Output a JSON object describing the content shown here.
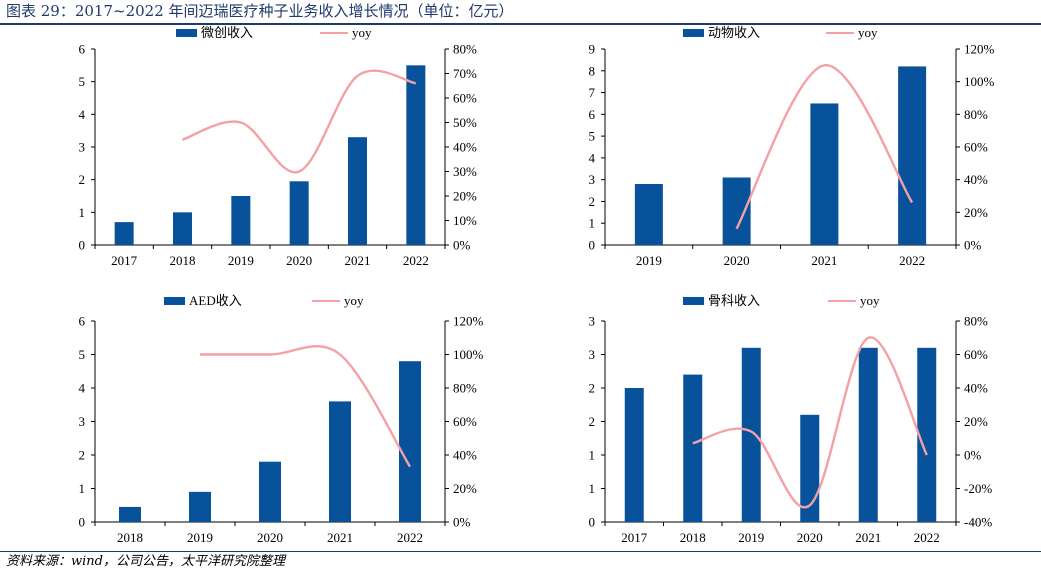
{
  "title": "图表 29：2017~2022 年间迈瑞医疗种子业务收入增长情况（单位：亿元）",
  "source": "资料来源：wind，公司公告，太平洋研究院整理",
  "colors": {
    "bar": "#08529c",
    "line": "#f4a0a4",
    "title": "#1f3a6b"
  },
  "chart_data": [
    {
      "type": "bar",
      "categories": [
        "2017",
        "2018",
        "2019",
        "2020",
        "2021",
        "2022"
      ],
      "series": [
        {
          "name": "微创收入",
          "type": "bar",
          "axis": "left",
          "values": [
            0.7,
            1.0,
            1.5,
            1.95,
            3.3,
            5.5
          ]
        },
        {
          "name": "yoy",
          "type": "line",
          "axis": "right",
          "values": [
            null,
            43,
            50,
            30,
            69,
            66
          ]
        }
      ],
      "ylim": [
        0,
        6
      ],
      "yticks": [
        "0",
        "1",
        "2",
        "3",
        "4",
        "5",
        "6"
      ],
      "y2lim": [
        0,
        80
      ],
      "y2ticks": [
        "0%",
        "10%",
        "20%",
        "30%",
        "40%",
        "50%",
        "60%",
        "70%",
        "80%"
      ],
      "legend": "top"
    },
    {
      "type": "bar",
      "categories": [
        "2019",
        "2020",
        "2021",
        "2022"
      ],
      "series": [
        {
          "name": "动物收入",
          "type": "bar",
          "axis": "left",
          "values": [
            2.8,
            3.1,
            6.5,
            8.2
          ]
        },
        {
          "name": "yoy",
          "type": "line",
          "axis": "right",
          "values": [
            null,
            10,
            110,
            26
          ]
        }
      ],
      "ylim": [
        0,
        9
      ],
      "yticks": [
        "0",
        "1",
        "2",
        "3",
        "4",
        "5",
        "6",
        "7",
        "8",
        "9"
      ],
      "y2lim": [
        0,
        120
      ],
      "y2ticks": [
        "0%",
        "20%",
        "40%",
        "60%",
        "80%",
        "100%",
        "120%"
      ],
      "legend": "top"
    },
    {
      "type": "bar",
      "categories": [
        "2018",
        "2019",
        "2020",
        "2021",
        "2022"
      ],
      "series": [
        {
          "name": "AED收入",
          "type": "bar",
          "axis": "left",
          "values": [
            0.45,
            0.9,
            1.8,
            3.6,
            4.8
          ]
        },
        {
          "name": "yoy",
          "type": "line",
          "axis": "right",
          "values": [
            null,
            100,
            100,
            100,
            33
          ]
        }
      ],
      "ylim": [
        0,
        6
      ],
      "yticks": [
        "0",
        "1",
        "2",
        "3",
        "4",
        "5",
        "6"
      ],
      "y2lim": [
        0,
        120
      ],
      "y2ticks": [
        "0%",
        "20%",
        "40%",
        "60%",
        "80%",
        "100%",
        "120%"
      ],
      "legend": "top"
    },
    {
      "type": "bar",
      "categories": [
        "2017",
        "2018",
        "2019",
        "2020",
        "2021",
        "2022"
      ],
      "series": [
        {
          "name": "骨科收入",
          "type": "bar",
          "axis": "left",
          "values": [
            2.0,
            2.2,
            2.6,
            1.6,
            2.6,
            2.6
          ]
        },
        {
          "name": "yoy",
          "type": "line",
          "axis": "right",
          "values": [
            null,
            7,
            14,
            -30,
            70,
            0
          ]
        }
      ],
      "ylim": [
        0,
        3
      ],
      "yticks": [
        "0",
        "1",
        "1",
        "2",
        "2",
        "3",
        "3"
      ],
      "y2lim": [
        -40,
        80
      ],
      "y2ticks": [
        "-40%",
        "-20%",
        "0%",
        "20%",
        "40%",
        "60%",
        "80%"
      ],
      "legend": "top"
    }
  ]
}
